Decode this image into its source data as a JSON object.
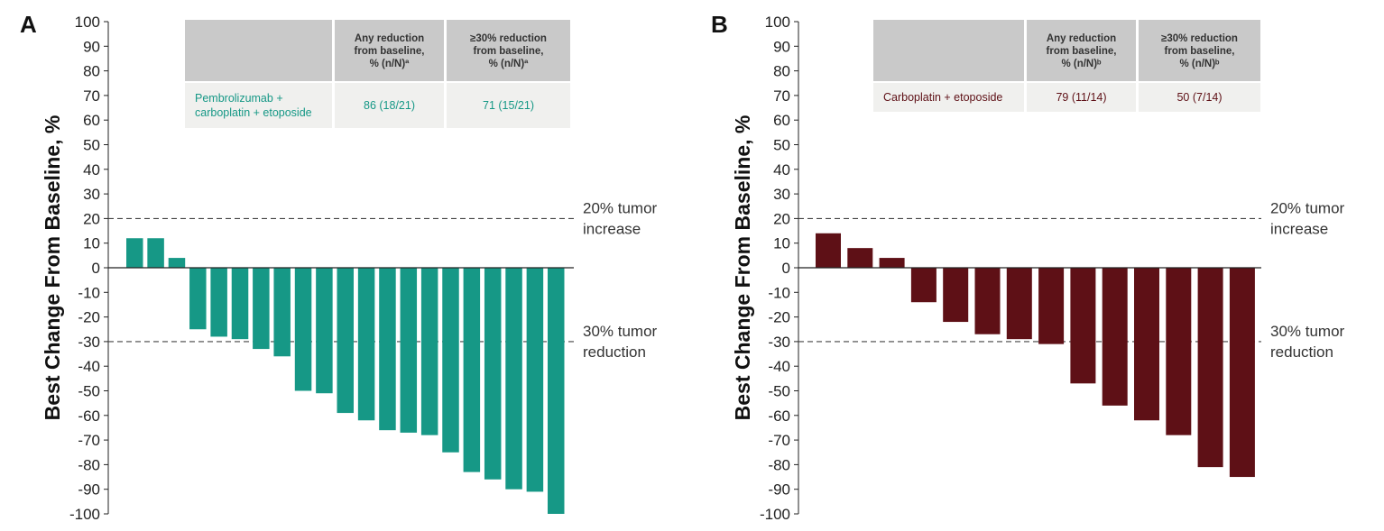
{
  "chart_data": [
    {
      "type": "bar",
      "panel": "A",
      "ylabel": "Best Change From Baseline, %",
      "ylim": [
        -100,
        100
      ],
      "yticks": [
        100,
        90,
        80,
        70,
        60,
        50,
        40,
        30,
        20,
        10,
        0,
        -10,
        -20,
        -30,
        -40,
        -50,
        -60,
        -70,
        -80,
        -90,
        -100
      ],
      "color": "#169886",
      "values": [
        12,
        12,
        4,
        -25,
        -28,
        -29,
        -33,
        -36,
        -50,
        -51,
        -59,
        -62,
        -66,
        -67,
        -68,
        -75,
        -83,
        -86,
        -90,
        -91,
        -100
      ],
      "reference_lines": [
        {
          "value": 20,
          "label_line1": "20% tumor",
          "label_line2": "increase"
        },
        {
          "value": -30,
          "label_line1": "30% tumor",
          "label_line2": "reduction"
        }
      ],
      "table": {
        "header": [
          "",
          "Any reduction|from baseline,|% (n/N)ª",
          "≥30% reduction|from baseline,|% (n/N)ª"
        ],
        "row": {
          "label": "Pembrolizumab +|carboplatin + etoposide",
          "any_reduction": "86 (18/21)",
          "reduction_30": "71 (15/21)",
          "color": "#169886"
        }
      }
    },
    {
      "type": "bar",
      "panel": "B",
      "ylabel": "Best Change From Baseline, %",
      "ylim": [
        -100,
        100
      ],
      "yticks": [
        100,
        90,
        80,
        70,
        60,
        50,
        40,
        30,
        20,
        10,
        0,
        -10,
        -20,
        -30,
        -40,
        -50,
        -60,
        -70,
        -80,
        -90,
        -100
      ],
      "color": "#5e1016",
      "values": [
        14,
        8,
        4,
        -14,
        -22,
        -27,
        -29,
        -31,
        -47,
        -56,
        -62,
        -68,
        -81,
        -85
      ],
      "reference_lines": [
        {
          "value": 20,
          "label_line1": "20% tumor",
          "label_line2": "increase"
        },
        {
          "value": -30,
          "label_line1": "30% tumor",
          "label_line2": "reduction"
        }
      ],
      "table": {
        "header": [
          "",
          "Any reduction|from baseline,|% (n/N)ᵇ",
          "≥30% reduction|from baseline,|% (n/N)ᵇ"
        ],
        "row": {
          "label": "Carboplatin + etoposide",
          "any_reduction": "79 (11/14)",
          "reduction_30": "50 (7/14)",
          "color": "#5e1016"
        }
      }
    }
  ]
}
